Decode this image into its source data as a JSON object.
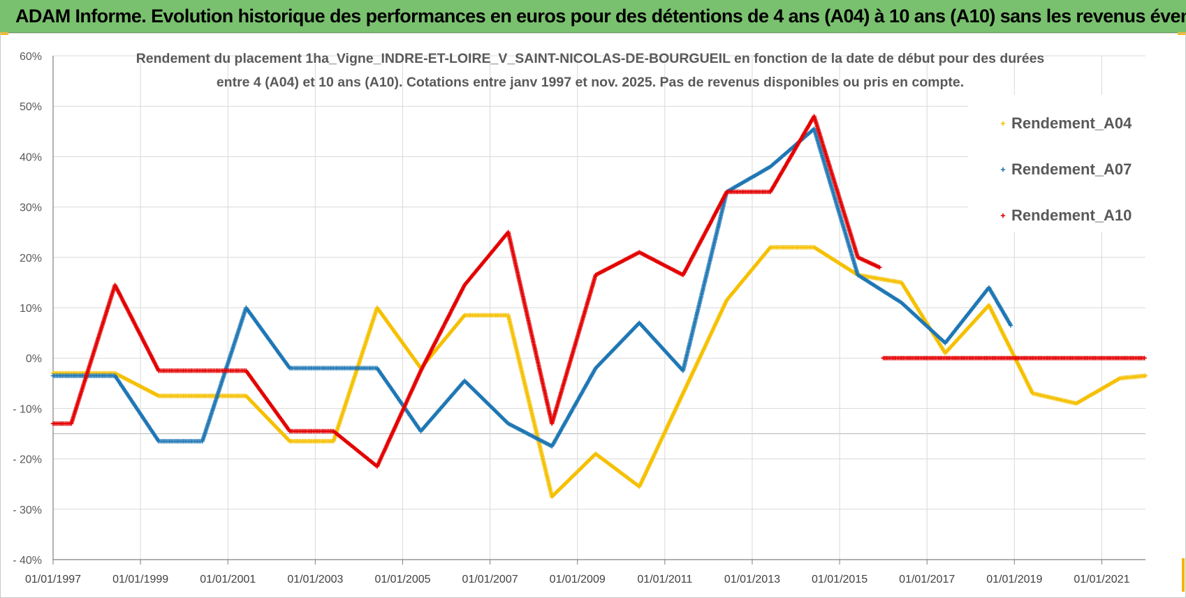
{
  "header": {
    "title": "ADAM Informe. Evolution historique des performances en euros pour des détentions de 4 ans (A04) à 10 ans (A10) sans les revenus éventuels"
  },
  "chart_data": {
    "type": "scatter",
    "title_lines": [
      "Rendement du placement 1ha_Vigne_INDRE-ET-LOIRE_V_SAINT-NICOLAS-DE-BOURGUEIL en fonction de la date de début pour des durées",
      "entre 4 (A04) et 10 ans (A10).  Cotations entre janv 1997 et  nov. 2025. Pas de revenus disponibles ou pris en compte."
    ],
    "xlabel": "",
    "ylabel": "",
    "x_range": [
      "1997-01-01",
      "2022-01-01"
    ],
    "ylim": [
      -40,
      60
    ],
    "y_ticks": [
      60,
      50,
      40,
      30,
      20,
      10,
      0,
      -10,
      -20,
      -30,
      -40
    ],
    "y_tick_labels": [
      "60%",
      "50%",
      "40%",
      "30%",
      "20%",
      "10%",
      "0%",
      "- 10%",
      "- 20%",
      "- 30%",
      "- 40%"
    ],
    "x_tick_labels": [
      "01/01/1997",
      "01/01/1999",
      "01/01/2001",
      "01/01/2003",
      "01/01/2005",
      "01/01/2007",
      "01/01/2009",
      "01/01/2011",
      "01/01/2013",
      "01/01/2015",
      "01/01/2017",
      "01/01/2019",
      "01/01/2021"
    ],
    "x_tick_years": [
      1997,
      1999,
      2001,
      2003,
      2005,
      2007,
      2009,
      2011,
      2013,
      2015,
      2017,
      2019,
      2021
    ],
    "grid": true,
    "legend_position": "top-right",
    "marker": "+",
    "series": [
      {
        "name": "Rendement_A04",
        "color": "#f5c000",
        "points": [
          [
            "1997-01-01",
            -3
          ],
          [
            "1998-06-01",
            -3
          ],
          [
            "1999-06-01",
            -7.5
          ],
          [
            "2000-06-01",
            -7.5
          ],
          [
            "2001-06-01",
            -7.5
          ],
          [
            "2002-06-01",
            -16.5
          ],
          [
            "2003-06-01",
            -16.5
          ],
          [
            "2004-06-01",
            10
          ],
          [
            "2005-06-01",
            -2
          ],
          [
            "2006-06-01",
            8.5
          ],
          [
            "2007-06-01",
            8.5
          ],
          [
            "2008-06-01",
            -27.5
          ],
          [
            "2009-06-01",
            -19
          ],
          [
            "2010-06-01",
            -25.5
          ],
          [
            "2011-06-01",
            -7
          ],
          [
            "2012-06-01",
            11.5
          ],
          [
            "2013-06-01",
            22
          ],
          [
            "2014-06-01",
            22
          ],
          [
            "2015-06-01",
            16.5
          ],
          [
            "2016-06-01",
            15
          ],
          [
            "2017-06-01",
            1
          ],
          [
            "2018-06-01",
            10.5
          ],
          [
            "2019-06-01",
            -7
          ],
          [
            "2020-06-01",
            -9
          ],
          [
            "2021-06-01",
            -4
          ],
          [
            "2022-01-01",
            -3.5
          ]
        ]
      },
      {
        "name": "Rendement_A07",
        "color": "#1f77b4",
        "points": [
          [
            "1997-01-01",
            -3.5
          ],
          [
            "1998-06-01",
            -3.5
          ],
          [
            "1999-06-01",
            -16.5
          ],
          [
            "2000-06-01",
            -16.5
          ],
          [
            "2001-06-01",
            10
          ],
          [
            "2002-06-01",
            -2
          ],
          [
            "2003-06-01",
            -2
          ],
          [
            "2004-06-01",
            -2
          ],
          [
            "2005-06-01",
            -14.5
          ],
          [
            "2006-06-01",
            -4.5
          ],
          [
            "2007-06-01",
            -13
          ],
          [
            "2008-06-01",
            -17.5
          ],
          [
            "2009-06-01",
            -2
          ],
          [
            "2010-06-01",
            7
          ],
          [
            "2011-06-01",
            -2.5
          ],
          [
            "2012-06-01",
            33
          ],
          [
            "2013-06-01",
            38
          ],
          [
            "2014-06-01",
            45.5
          ],
          [
            "2015-06-01",
            16.5
          ],
          [
            "2016-06-01",
            11
          ],
          [
            "2017-06-01",
            3
          ],
          [
            "2018-06-01",
            14
          ],
          [
            "2018-12-01",
            6.5
          ]
        ]
      },
      {
        "name": "Rendement_A10",
        "color": "#e30000",
        "points": [
          [
            "1997-01-01",
            -13
          ],
          [
            "1997-06-01",
            -13
          ],
          [
            "1998-06-01",
            14.5
          ],
          [
            "1999-06-01",
            -2.5
          ],
          [
            "2000-06-01",
            -2.5
          ],
          [
            "2001-06-01",
            -2.5
          ],
          [
            "2002-06-01",
            -14.5
          ],
          [
            "2003-06-01",
            -14.5
          ],
          [
            "2004-06-01",
            -21.5
          ],
          [
            "2005-06-01",
            -2.5
          ],
          [
            "2006-06-01",
            14.5
          ],
          [
            "2007-06-01",
            25
          ],
          [
            "2008-06-01",
            -13
          ],
          [
            "2009-06-01",
            16.5
          ],
          [
            "2010-06-01",
            21
          ],
          [
            "2011-06-01",
            16.5
          ],
          [
            "2012-06-01",
            33
          ],
          [
            "2013-06-01",
            33
          ],
          [
            "2014-06-01",
            48
          ],
          [
            "2015-06-01",
            20
          ],
          [
            "2015-12-01",
            18
          ]
        ],
        "zero_segment": [
          "2016-01-01",
          "2022-01-01"
        ]
      }
    ]
  }
}
